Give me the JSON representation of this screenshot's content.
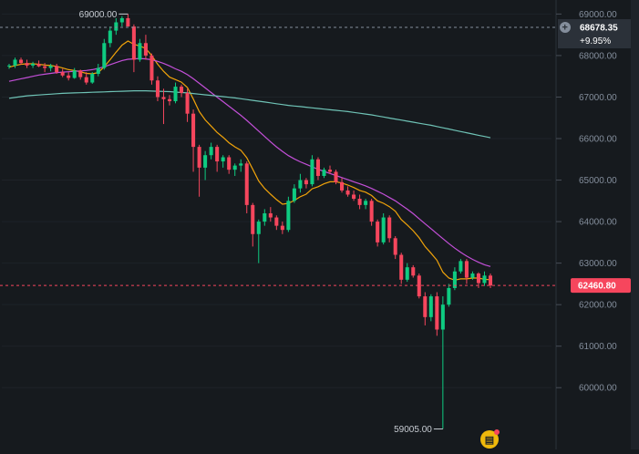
{
  "chart_data": {
    "type": "candlestick",
    "y_axis": {
      "ticks": [
        "69000.00",
        "68000.00",
        "67000.00",
        "66000.00",
        "65000.00",
        "64000.00",
        "63000.00",
        "62000.00",
        "61000.00",
        "60000.00"
      ],
      "ylim": [
        58600,
        69250
      ]
    },
    "annotations": {
      "high_label": "69000.00",
      "low_label": "59005.00"
    },
    "reference_price": {
      "value": 68678.35,
      "label": "68678.35",
      "change": "+9.95%"
    },
    "last_price": {
      "value": 62460.8,
      "label": "62460.80"
    },
    "candles": [
      [
        67750,
        67800,
        67680,
        67760
      ],
      [
        67760,
        67950,
        67700,
        67900
      ],
      [
        67900,
        67950,
        67780,
        67820
      ],
      [
        67820,
        67900,
        67700,
        67760
      ],
      [
        67760,
        67850,
        67700,
        67800
      ],
      [
        67800,
        67880,
        67720,
        67740
      ],
      [
        67740,
        67820,
        67600,
        67700
      ],
      [
        67700,
        67800,
        67620,
        67750
      ],
      [
        67750,
        67800,
        67560,
        67600
      ],
      [
        67600,
        67680,
        67480,
        67520
      ],
      [
        67520,
        67600,
        67400,
        67460
      ],
      [
        67460,
        67700,
        67440,
        67640
      ],
      [
        67640,
        67660,
        67420,
        67480
      ],
      [
        67480,
        67600,
        67300,
        67350
      ],
      [
        67350,
        67600,
        67320,
        67560
      ],
      [
        67560,
        67800,
        67500,
        67700
      ],
      [
        67700,
        68400,
        67660,
        68300
      ],
      [
        68300,
        68700,
        68200,
        68600
      ],
      [
        68600,
        68900,
        68500,
        68800
      ],
      [
        68800,
        68950,
        68700,
        68900
      ],
      [
        68900,
        69000,
        68700,
        68700
      ],
      [
        68700,
        68750,
        67600,
        67900
      ],
      [
        67900,
        68400,
        67850,
        68300
      ],
      [
        68300,
        68500,
        67900,
        68000
      ],
      [
        68000,
        68050,
        67300,
        67400
      ],
      [
        67400,
        67500,
        66900,
        67000
      ],
      [
        67000,
        67200,
        66350,
        66950
      ],
      [
        66950,
        67050,
        66800,
        66900
      ],
      [
        66900,
        67350,
        66850,
        67250
      ],
      [
        67250,
        67300,
        67000,
        67100
      ],
      [
        67100,
        67200,
        66400,
        66600
      ],
      [
        66600,
        66700,
        65200,
        65800
      ],
      [
        65800,
        65850,
        64600,
        65300
      ],
      [
        65300,
        65700,
        65000,
        65600
      ],
      [
        65600,
        65900,
        65500,
        65800
      ],
      [
        65800,
        65850,
        65200,
        65450
      ],
      [
        65450,
        65600,
        65300,
        65550
      ],
      [
        65550,
        65600,
        65150,
        65250
      ],
      [
        65250,
        65400,
        65100,
        65350
      ],
      [
        65350,
        65500,
        65200,
        65400
      ],
      [
        65400,
        65450,
        64200,
        64400
      ],
      [
        64400,
        64450,
        63400,
        63700
      ],
      [
        63700,
        64050,
        63000,
        64000
      ],
      [
        64000,
        64300,
        63900,
        64200
      ],
      [
        64200,
        64350,
        64000,
        64100
      ],
      [
        64100,
        64150,
        63800,
        63900
      ],
      [
        63900,
        64000,
        63700,
        63800
      ],
      [
        63800,
        64600,
        63750,
        64500
      ],
      [
        64500,
        64900,
        64450,
        64800
      ],
      [
        64800,
        65150,
        64700,
        65000
      ],
      [
        65000,
        65050,
        64800,
        64900
      ],
      [
        64900,
        65600,
        64850,
        65500
      ],
      [
        65500,
        65550,
        65000,
        65100
      ],
      [
        65100,
        65300,
        65050,
        65250
      ],
      [
        65250,
        65350,
        65150,
        65200
      ],
      [
        65200,
        65250,
        64900,
        64950
      ],
      [
        64950,
        65050,
        64700,
        64750
      ],
      [
        64750,
        64850,
        64600,
        64650
      ],
      [
        64650,
        64750,
        64500,
        64550
      ],
      [
        64550,
        64650,
        64300,
        64400
      ],
      [
        64400,
        64550,
        64300,
        64500
      ],
      [
        64500,
        64550,
        63900,
        64000
      ],
      [
        64000,
        64050,
        63400,
        63500
      ],
      [
        63500,
        64200,
        63450,
        64100
      ],
      [
        64100,
        64150,
        63500,
        63600
      ],
      [
        63600,
        63650,
        63100,
        63200
      ],
      [
        63200,
        63250,
        62500,
        62600
      ],
      [
        62600,
        63000,
        62550,
        62900
      ],
      [
        62900,
        62950,
        62650,
        62700
      ],
      [
        62700,
        62750,
        62150,
        62200
      ],
      [
        62200,
        62300,
        61500,
        61700
      ],
      [
        61700,
        62250,
        61600,
        62200
      ],
      [
        62200,
        62300,
        61250,
        61400
      ],
      [
        61400,
        62200,
        59005,
        62000
      ],
      [
        62000,
        62500,
        61950,
        62400
      ],
      [
        62400,
        62900,
        62350,
        62800
      ],
      [
        62800,
        63100,
        62750,
        63050
      ],
      [
        63050,
        63100,
        62500,
        62650
      ],
      [
        62650,
        62800,
        62600,
        62750
      ],
      [
        62750,
        62780,
        62400,
        62520
      ],
      [
        62520,
        62800,
        62450,
        62700
      ],
      [
        62700,
        62750,
        62400,
        62460.8
      ]
    ],
    "series": [
      {
        "color": "#f0a30a",
        "values": [
          67720,
          67760,
          67790,
          67800,
          67800,
          67790,
          67770,
          67760,
          67740,
          67700,
          67660,
          67640,
          67610,
          67570,
          67560,
          67590,
          67730,
          67900,
          68080,
          68250,
          68350,
          68270,
          68230,
          68170,
          68000,
          67790,
          67620,
          67480,
          67420,
          67360,
          67230,
          66950,
          66650,
          66450,
          66300,
          66150,
          66030,
          65900,
          65800,
          65720,
          65540,
          65260,
          64980,
          64800,
          64660,
          64530,
          64420,
          64440,
          64510,
          64600,
          64660,
          64790,
          64840,
          64910,
          64960,
          64960,
          64930,
          64880,
          64820,
          64750,
          64710,
          64630,
          64500,
          64440,
          64360,
          64250,
          64050,
          63920,
          63780,
          63610,
          63400,
          63240,
          63070,
          62780,
          62640,
          62590,
          62620,
          62620,
          62640,
          62640,
          62610,
          62600
        ]
      },
      {
        "color": "#c34fd8",
        "values": [
          67380,
          67410,
          67440,
          67470,
          67500,
          67530,
          67550,
          67570,
          67590,
          67600,
          67610,
          67620,
          67630,
          67640,
          67660,
          67690,
          67730,
          67780,
          67830,
          67880,
          67910,
          67920,
          67930,
          67920,
          67900,
          67860,
          67810,
          67750,
          67680,
          67620,
          67540,
          67440,
          67330,
          67220,
          67110,
          67000,
          66890,
          66780,
          66670,
          66560,
          66440,
          66310,
          66180,
          66050,
          65920,
          65800,
          65690,
          65590,
          65510,
          65440,
          65380,
          65320,
          65260,
          65210,
          65160,
          65110,
          65060,
          65010,
          64960,
          64910,
          64860,
          64800,
          64730,
          64660,
          64580,
          64500,
          64400,
          64300,
          64190,
          64070,
          63950,
          63830,
          63710,
          63590,
          63470,
          63360,
          63260,
          63170,
          63090,
          63020,
          62960,
          62920
        ]
      },
      {
        "color": "#6fc3b6",
        "values": [
          66970,
          66990,
          67010,
          67030,
          67040,
          67050,
          67060,
          67070,
          67080,
          67090,
          67095,
          67100,
          67105,
          67110,
          67115,
          67120,
          67125,
          67130,
          67135,
          67140,
          67145,
          67150,
          67150,
          67150,
          67145,
          67140,
          67135,
          67130,
          67120,
          67110,
          67100,
          67085,
          67070,
          67055,
          67040,
          67025,
          67010,
          66995,
          66980,
          66960,
          66940,
          66920,
          66900,
          66880,
          66860,
          66840,
          66820,
          66800,
          66785,
          66770,
          66755,
          66740,
          66725,
          66710,
          66695,
          66680,
          66665,
          66650,
          66630,
          66610,
          66590,
          66570,
          66545,
          66520,
          66495,
          66470,
          66445,
          66420,
          66395,
          66370,
          66345,
          66320,
          66290,
          66260,
          66230,
          66200,
          66170,
          66140,
          66110,
          66080,
          66050,
          66020
        ]
      }
    ]
  },
  "colors": {
    "background": "#161a1e",
    "up": "#0ecb81",
    "down": "#f6465d",
    "grid": "#1e2329",
    "axis_text": "#848e9c",
    "ref_tag": "#2b3139",
    "last_tag": "#f6465d"
  },
  "icons": {
    "add_alert": "plus-circle-icon",
    "badge": "notification-badge-icon"
  }
}
